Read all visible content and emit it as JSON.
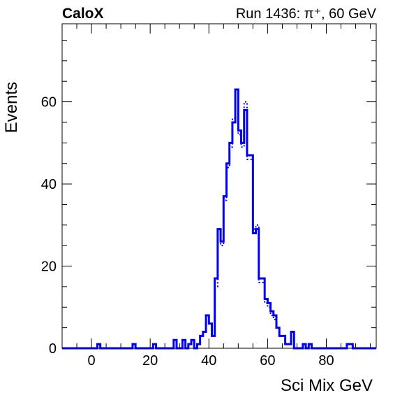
{
  "header": {
    "experiment_label": "CaloX",
    "run_label": "Run 1436: π⁺, 60 GeV"
  },
  "chart_data": {
    "type": "histogram",
    "title": "",
    "xlabel": "Sci Mix GeV",
    "ylabel": "Events",
    "xlim": [
      -10,
      97
    ],
    "ylim": [
      0,
      79
    ],
    "xticks": [
      0,
      20,
      40,
      60,
      80
    ],
    "yticks": [
      0,
      20,
      40,
      60
    ],
    "grid": false,
    "line_color": "#0000ee",
    "bin_edges": [
      -10,
      -9,
      -8,
      -7,
      -6,
      -5,
      -4,
      -3,
      -2,
      -1,
      0,
      1,
      2,
      3,
      4,
      5,
      6,
      7,
      8,
      9,
      10,
      11,
      12,
      13,
      14,
      15,
      16,
      17,
      18,
      19,
      20,
      21,
      22,
      23,
      24,
      25,
      26,
      27,
      28,
      29,
      30,
      31,
      32,
      33,
      34,
      35,
      36,
      37,
      38,
      39,
      40,
      41,
      42,
      43,
      44,
      45,
      46,
      47,
      48,
      49,
      50,
      51,
      52,
      53,
      54,
      55,
      56,
      57,
      58,
      59,
      60,
      61,
      62,
      63,
      64,
      65,
      66,
      67,
      68,
      69,
      70,
      71,
      72,
      73,
      74,
      75,
      76,
      77,
      78,
      79,
      80,
      81,
      82,
      83,
      84,
      85,
      86,
      87,
      88,
      89,
      90,
      91,
      92,
      93,
      94,
      95,
      96,
      97
    ],
    "series": [
      {
        "style": "solid",
        "counts": [
          0,
          0,
          0,
          0,
          0,
          0,
          0,
          0,
          0,
          0,
          0,
          0,
          1,
          0,
          0,
          0,
          0,
          0,
          0,
          0,
          0,
          0,
          0,
          0,
          1,
          0,
          0,
          0,
          0,
          0,
          0,
          1,
          0,
          0,
          0,
          0,
          0,
          0,
          2,
          0,
          0,
          2,
          0,
          1,
          2,
          0,
          1,
          3,
          4,
          8,
          6,
          3,
          17,
          29,
          26,
          37,
          45,
          50,
          55,
          63,
          53,
          50,
          58,
          47,
          47,
          28,
          29,
          17,
          17,
          12,
          11,
          9,
          8,
          5,
          3,
          3,
          1,
          1,
          4,
          0,
          0,
          0,
          1,
          0,
          1,
          0,
          0,
          0,
          0,
          0,
          0,
          0,
          0,
          0,
          0,
          0,
          0,
          1,
          1,
          0,
          0,
          0,
          0,
          0,
          0,
          0,
          0
        ],
        "note": ""
      },
      {
        "style": "dotted",
        "counts": [
          0,
          0,
          0,
          0,
          0,
          0,
          0,
          0,
          0,
          0,
          0,
          0,
          1,
          0,
          0,
          0,
          0,
          0,
          0,
          0,
          0,
          0,
          0,
          0,
          1,
          0,
          0,
          0,
          0,
          0,
          0,
          1,
          0,
          0,
          0,
          0,
          0,
          0,
          2,
          0,
          0,
          2,
          0,
          1,
          2,
          0,
          1,
          3,
          4,
          8,
          6,
          3,
          15,
          28,
          25,
          36,
          44,
          49,
          56,
          61,
          52,
          49,
          60,
          46,
          46,
          29,
          30,
          16,
          16,
          11,
          10,
          8,
          7,
          5,
          3,
          3,
          1,
          1,
          4,
          0,
          0,
          0,
          1,
          0,
          1,
          0,
          0,
          0,
          0,
          0,
          0,
          0,
          0,
          0,
          0,
          0,
          0,
          1,
          1,
          0,
          0,
          0,
          0,
          0,
          0,
          0,
          0
        ],
        "note": ""
      }
    ]
  }
}
